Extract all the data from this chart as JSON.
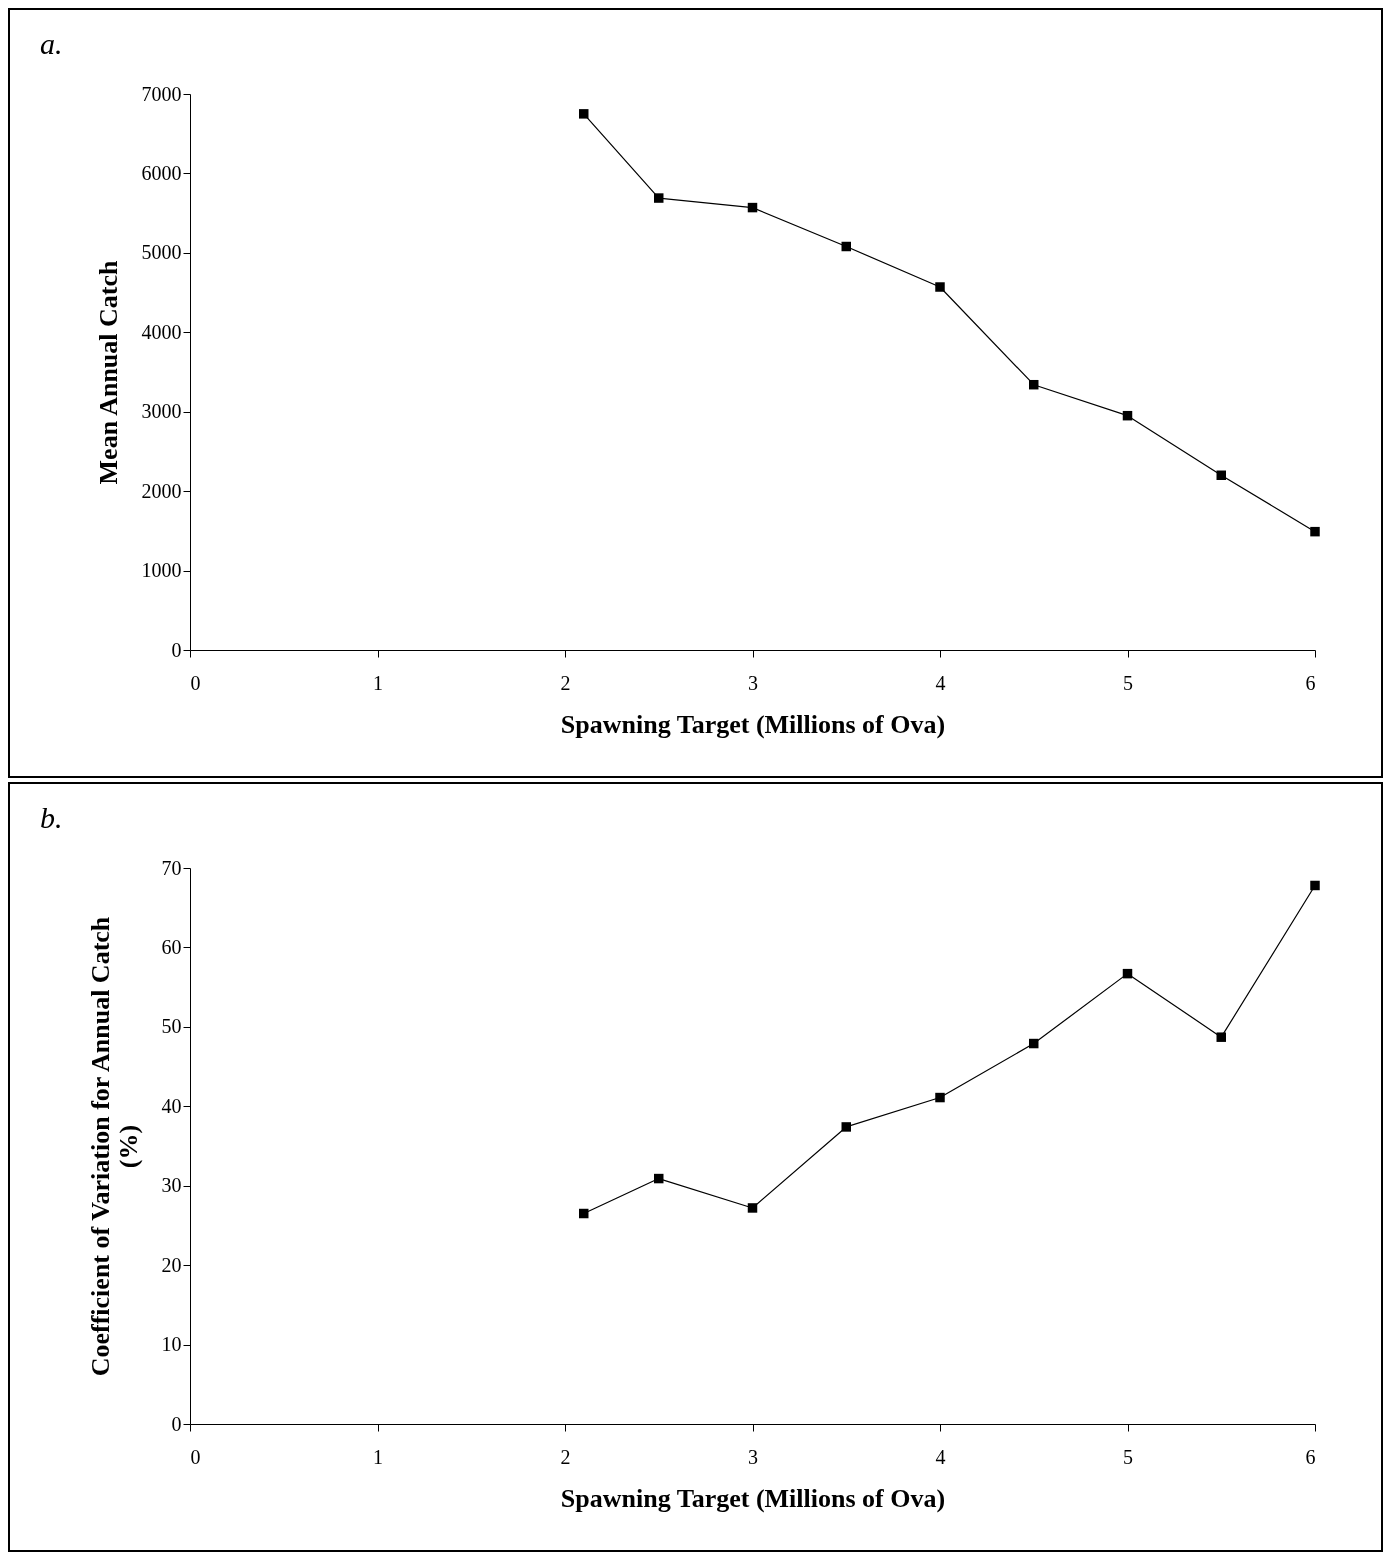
{
  "chart_data": [
    {
      "type": "line",
      "title": "a.",
      "xlabel": "Spawning Target (Millions of Ova)",
      "ylabel": "Mean Annual Catch",
      "x": [
        2.1,
        2.5,
        3,
        3.5,
        4,
        4.5,
        5,
        5.5,
        6
      ],
      "series": [
        {
          "color": "#000000",
          "values": [
            6750,
            5690,
            5570,
            5080,
            4570,
            3340,
            2950,
            2200,
            1490
          ]
        }
      ],
      "xlim": [
        0,
        6
      ],
      "xticks": [
        0,
        1,
        2,
        3,
        4,
        5,
        6
      ],
      "ylim": [
        0,
        7000
      ],
      "yticks": [
        0,
        1000,
        2000,
        3000,
        4000,
        5000,
        6000,
        7000
      ],
      "grid": false,
      "marker": "square",
      "line_style": "solid"
    },
    {
      "type": "line",
      "title": "b.",
      "xlabel": "Spawning Target (Millions of Ova)",
      "ylabel": "Coefficient of Variation for Annual Catch (%)",
      "x": [
        2.1,
        2.5,
        3,
        3.5,
        4,
        4.5,
        5,
        5.5,
        6
      ],
      "series": [
        {
          "color": "#000000",
          "values": [
            26.5,
            30.9,
            27.2,
            37.4,
            41.1,
            47.9,
            56.7,
            48.7,
            67.8
          ]
        }
      ],
      "xlim": [
        0,
        6
      ],
      "xticks": [
        0,
        1,
        2,
        3,
        4,
        5,
        6
      ],
      "ylim": [
        0,
        70
      ],
      "yticks": [
        0,
        10,
        20,
        30,
        40,
        50,
        60,
        70
      ],
      "grid": false,
      "marker": "square",
      "line_style": "solid"
    }
  ]
}
